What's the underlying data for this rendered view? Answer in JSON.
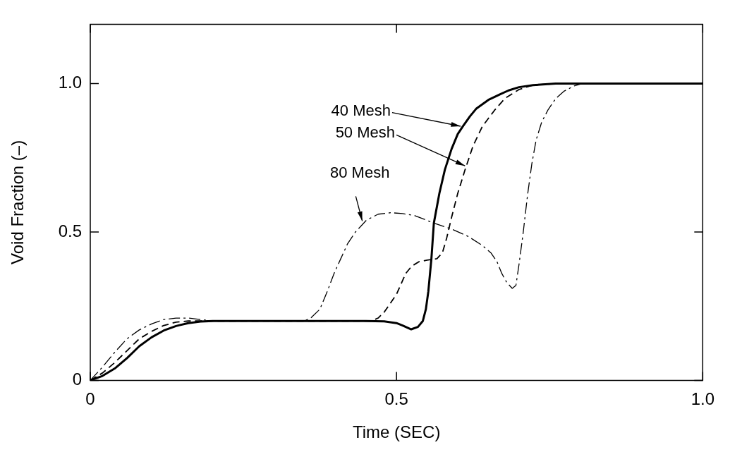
{
  "chart_data": {
    "type": "line",
    "xlabel": "Time (SEC)",
    "ylabel": "Void Fraction (–)",
    "xlim": [
      0,
      1.0
    ],
    "ylim": [
      0,
      1.2
    ],
    "xticks": [
      0,
      {
        "value": 0.5,
        "label": "0.5"
      },
      {
        "value": 1.0,
        "label": "1.0"
      }
    ],
    "yticks": [
      0,
      {
        "value": 0.5,
        "label": "0.5"
      },
      {
        "value": 1.0,
        "label": "1.0"
      }
    ],
    "grid": false,
    "legend": false,
    "marker": "none",
    "annotations": [
      {
        "text": "40 Mesh",
        "x": 0.608,
        "y": 0.855
      },
      {
        "text": "50 Mesh",
        "x": 0.615,
        "y": 0.72
      },
      {
        "text": "80 Mesh",
        "x": 0.445,
        "y": 0.53
      }
    ],
    "series": [
      {
        "color": "#000000",
        "line_style": "solid",
        "x": [
          0,
          0.02,
          0.04,
          0.06,
          0.08,
          0.1,
          0.12,
          0.14,
          0.16,
          0.18,
          0.2,
          0.25,
          0.3,
          0.35,
          0.4,
          0.45,
          0.48,
          0.5,
          0.51,
          0.524,
          0.535,
          0.543,
          0.548,
          0.552,
          0.557,
          0.561,
          0.57,
          0.579,
          0.59,
          0.6,
          0.608,
          0.62,
          0.63,
          0.65,
          0.67,
          0.683,
          0.7,
          0.723,
          0.76,
          0.8,
          0.85,
          0.9,
          0.95,
          1.0
        ],
        "values": [
          0,
          0.015,
          0.04,
          0.075,
          0.115,
          0.145,
          0.168,
          0.183,
          0.193,
          0.198,
          0.2,
          0.2,
          0.2,
          0.2,
          0.2,
          0.2,
          0.199,
          0.193,
          0.185,
          0.172,
          0.18,
          0.2,
          0.24,
          0.3,
          0.41,
          0.53,
          0.63,
          0.71,
          0.78,
          0.83,
          0.855,
          0.89,
          0.915,
          0.945,
          0.965,
          0.977,
          0.988,
          0.995,
          1.0,
          1.0,
          1.0,
          1.0,
          1.0,
          1.0
        ]
      },
      {
        "color": "#000000",
        "line_style": "dashed",
        "x": [
          0,
          0.02,
          0.04,
          0.06,
          0.08,
          0.1,
          0.12,
          0.14,
          0.16,
          0.18,
          0.2,
          0.25,
          0.3,
          0.35,
          0.4,
          0.45,
          0.459,
          0.47,
          0.48,
          0.49,
          0.5,
          0.515,
          0.525,
          0.537,
          0.55,
          0.566,
          0.575,
          0.582,
          0.59,
          0.6,
          0.612,
          0.625,
          0.64,
          0.66,
          0.677,
          0.7,
          0.723,
          0.76,
          0.8,
          0.85,
          0.9,
          1.0
        ],
        "values": [
          0,
          0.025,
          0.06,
          0.1,
          0.14,
          0.165,
          0.185,
          0.196,
          0.2,
          0.2,
          0.2,
          0.2,
          0.2,
          0.2,
          0.2,
          0.2,
          0.2,
          0.21,
          0.23,
          0.26,
          0.29,
          0.36,
          0.385,
          0.4,
          0.405,
          0.41,
          0.43,
          0.48,
          0.55,
          0.63,
          0.71,
          0.79,
          0.855,
          0.91,
          0.95,
          0.98,
          0.995,
          1.0,
          1.0,
          1.0,
          1.0,
          1.0
        ]
      },
      {
        "color": "#000000",
        "line_style": "dashdot",
        "x": [
          0,
          0.02,
          0.04,
          0.06,
          0.08,
          0.1,
          0.12,
          0.14,
          0.16,
          0.18,
          0.2,
          0.25,
          0.3,
          0.349,
          0.36,
          0.375,
          0.387,
          0.398,
          0.409,
          0.42,
          0.433,
          0.451,
          0.47,
          0.491,
          0.51,
          0.53,
          0.561,
          0.59,
          0.617,
          0.64,
          0.654,
          0.664,
          0.672,
          0.68,
          0.689,
          0.695,
          0.7,
          0.707,
          0.714,
          0.721,
          0.728,
          0.737,
          0.747,
          0.76,
          0.774,
          0.79,
          0.803,
          0.85,
          0.9,
          1.0
        ],
        "values": [
          0,
          0.045,
          0.095,
          0.14,
          0.17,
          0.19,
          0.205,
          0.21,
          0.21,
          0.205,
          0.2,
          0.2,
          0.2,
          0.2,
          0.21,
          0.24,
          0.3,
          0.36,
          0.41,
          0.46,
          0.5,
          0.54,
          0.56,
          0.565,
          0.562,
          0.555,
          0.53,
          0.51,
          0.485,
          0.455,
          0.43,
          0.4,
          0.36,
          0.33,
          0.31,
          0.32,
          0.39,
          0.5,
          0.625,
          0.73,
          0.81,
          0.87,
          0.91,
          0.95,
          0.975,
          0.992,
          1.0,
          1.0,
          1.0,
          1.0
        ]
      }
    ]
  }
}
